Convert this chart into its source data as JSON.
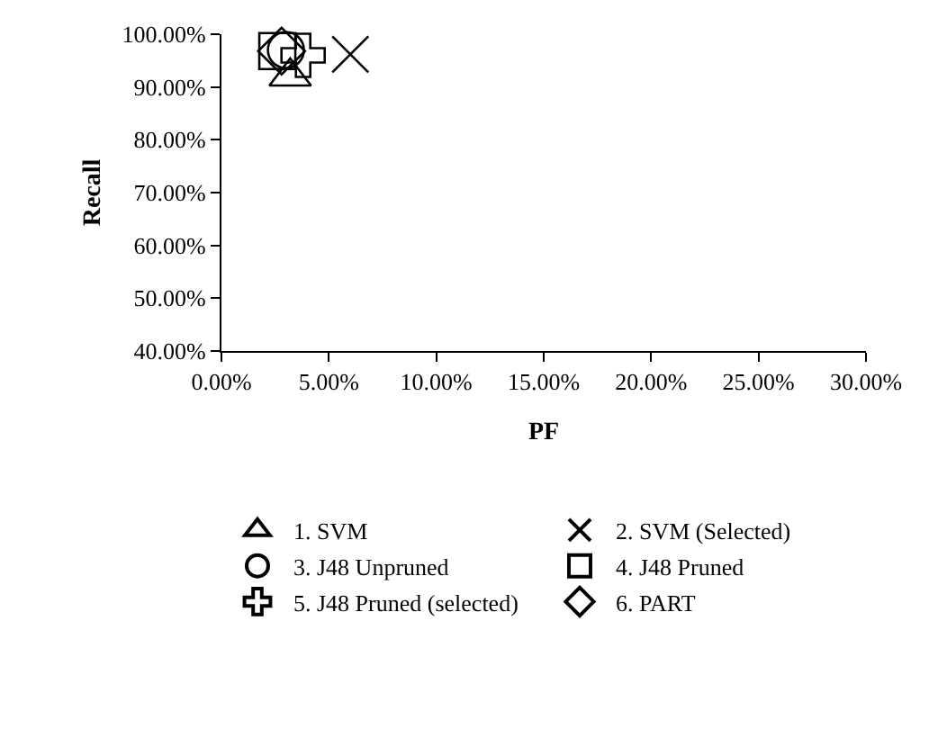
{
  "chart_data": {
    "type": "scatter",
    "xlabel": "PF",
    "ylabel": "Recall",
    "xlim": [
      0,
      30
    ],
    "ylim": [
      40,
      100
    ],
    "xticks": [
      {
        "value": 0,
        "label": "0.00%"
      },
      {
        "value": 5,
        "label": "5.00%"
      },
      {
        "value": 10,
        "label": "10.00%"
      },
      {
        "value": 15,
        "label": "15.00%"
      },
      {
        "value": 20,
        "label": "20.00%"
      },
      {
        "value": 25,
        "label": "25.00%"
      },
      {
        "value": 30,
        "label": "30.00%"
      }
    ],
    "yticks": [
      {
        "value": 40,
        "label": "40.00%"
      },
      {
        "value": 50,
        "label": "50.00%"
      },
      {
        "value": 60,
        "label": "60.00%"
      },
      {
        "value": 70,
        "label": "70.00%"
      },
      {
        "value": 80,
        "label": "80.00%"
      },
      {
        "value": 90,
        "label": "90.00%"
      },
      {
        "value": 100,
        "label": "100.00%"
      }
    ],
    "legend": "bottom",
    "series": [
      {
        "name": "1. SVM",
        "color": "#000000",
        "marker": "triangle",
        "x": [
          3.2
        ],
        "values": [
          92
        ]
      },
      {
        "name": "2. SVM (Selected)",
        "color": "#000000",
        "x": [
          6.0
        ],
        "values": [
          96.2
        ]
      },
      {
        "name": "3. J48 Unpruned",
        "color": "#000000",
        "marker": "circle",
        "x": [
          3.0
        ],
        "values": [
          97
        ]
      },
      {
        "name": "4. J48 Pruned",
        "color": "#000000",
        "marker": "square",
        "x": [
          2.6
        ],
        "values": [
          96.8
        ]
      },
      {
        "name": "5. J48 Pruned (selected)",
        "color": "#000000",
        "marker": "cross",
        "x": [
          3.8
        ],
        "values": [
          96
        ]
      },
      {
        "name": "6. PART",
        "color": "#000000",
        "marker": "diamond",
        "x": [
          2.8
        ],
        "values": [
          96.8
        ]
      }
    ]
  }
}
